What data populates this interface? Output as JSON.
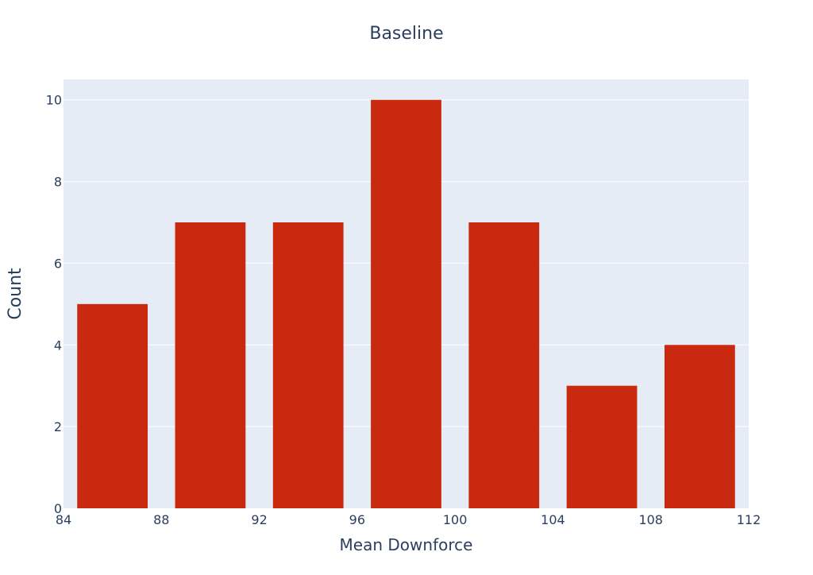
{
  "chart_data": {
    "type": "bar",
    "title": "Baseline",
    "xlabel": "Mean Downforce",
    "ylabel": "Count",
    "bins": [
      {
        "start": 84,
        "end": 88,
        "count": 5
      },
      {
        "start": 88,
        "end": 92,
        "count": 7
      },
      {
        "start": 92,
        "end": 96,
        "count": 7
      },
      {
        "start": 96,
        "end": 100,
        "count": 10
      },
      {
        "start": 100,
        "end": 104,
        "count": 7
      },
      {
        "start": 104,
        "end": 108,
        "count": 3
      },
      {
        "start": 108,
        "end": 112,
        "count": 4
      }
    ],
    "xlim": [
      84,
      112
    ],
    "ylim": [
      0,
      10.5
    ],
    "xticks": [
      84,
      88,
      92,
      96,
      100,
      104,
      108,
      112
    ],
    "yticks": [
      0,
      2,
      4,
      6,
      8,
      10
    ],
    "grid": true,
    "colors": {
      "bar": "#c8290f",
      "plot_background": "#e5ecf6",
      "grid": "#ffffff",
      "text": "#2a3f5f"
    }
  }
}
